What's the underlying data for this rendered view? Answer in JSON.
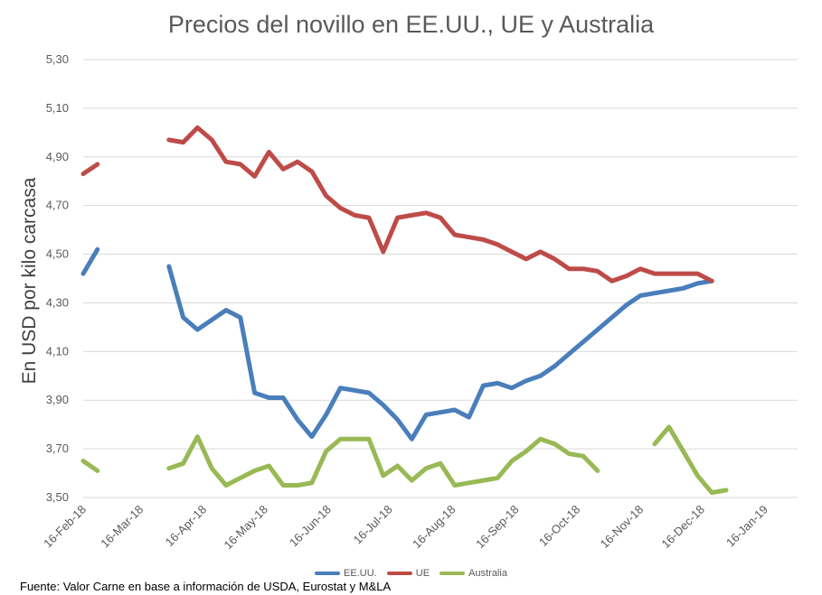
{
  "chart_data": {
    "type": "line",
    "title": "Precios del novillo en EE.UU., UE y Australia",
    "xlabel": "",
    "ylabel": "En USD por kilo carcasa",
    "ylim": [
      3.5,
      5.3
    ],
    "y_ticks": [
      "5,30",
      "5,10",
      "4,90",
      "4,70",
      "4,50",
      "4,30",
      "4,10",
      "3,90",
      "3,70",
      "3,50"
    ],
    "x_ticks": [
      "16-Feb-18",
      "16-Mar-18",
      "16-Apr-18",
      "16-May-18",
      "16-Jun-18",
      "16-Jul-18",
      "16-Aug-18",
      "16-Sep-18",
      "16-Oct-18",
      "16-Nov-18",
      "16-Dec-18",
      "16-Jan-19"
    ],
    "grid": "horizontal",
    "legend_position": "bottom",
    "x_dates": [
      "2018-02-16",
      "2018-02-23",
      "2018-03-02",
      "2018-03-09",
      "2018-03-16",
      "2018-03-23",
      "2018-03-30",
      "2018-04-06",
      "2018-04-13",
      "2018-04-20",
      "2018-04-27",
      "2018-05-04",
      "2018-05-11",
      "2018-05-18",
      "2018-05-25",
      "2018-06-01",
      "2018-06-08",
      "2018-06-15",
      "2018-06-22",
      "2018-06-29",
      "2018-07-06",
      "2018-07-13",
      "2018-07-20",
      "2018-07-27",
      "2018-08-03",
      "2018-08-10",
      "2018-08-17",
      "2018-08-24",
      "2018-08-31",
      "2018-09-07",
      "2018-09-14",
      "2018-09-21",
      "2018-09-28",
      "2018-10-05",
      "2018-10-12",
      "2018-10-19",
      "2018-10-26",
      "2018-11-02",
      "2018-11-09",
      "2018-11-16",
      "2018-11-23",
      "2018-11-30",
      "2018-12-07",
      "2018-12-14",
      "2018-12-21",
      "2018-12-28",
      "2019-01-04",
      "2019-01-11",
      "2019-01-18",
      "2019-01-25",
      "2019-02-01"
    ],
    "series": [
      {
        "name": "EE.UU.",
        "color": "#4A7EBB",
        "values": [
          4.42,
          4.52,
          null,
          4.51,
          null,
          null,
          4.45,
          4.24,
          4.19,
          4.23,
          4.27,
          4.24,
          3.93,
          3.91,
          3.91,
          3.82,
          3.75,
          3.84,
          3.95,
          3.94,
          3.93,
          3.88,
          3.82,
          3.74,
          3.84,
          3.85,
          3.86,
          3.83,
          3.96,
          3.97,
          3.95,
          3.98,
          4.0,
          4.04,
          4.09,
          4.14,
          4.19,
          4.24,
          4.29,
          4.33,
          4.34,
          4.35,
          4.36,
          4.38,
          4.39,
          null,
          null,
          null,
          null,
          null,
          null
        ]
      },
      {
        "name": "UE",
        "color": "#BE4B48",
        "values": [
          4.83,
          4.87,
          null,
          4.9,
          null,
          null,
          4.97,
          4.96,
          5.02,
          4.97,
          4.88,
          4.87,
          4.82,
          4.92,
          4.85,
          4.88,
          4.84,
          4.74,
          4.69,
          4.66,
          4.65,
          4.51,
          4.65,
          4.66,
          4.67,
          4.65,
          4.58,
          4.57,
          4.56,
          4.54,
          4.51,
          4.48,
          4.51,
          4.48,
          4.44,
          4.44,
          4.43,
          4.39,
          4.41,
          4.44,
          4.42,
          4.42,
          4.42,
          4.42,
          4.39,
          null,
          null,
          null,
          null,
          null,
          null
        ]
      },
      {
        "name": "Australia",
        "color": "#98B954",
        "values": [
          3.65,
          3.61,
          null,
          3.62,
          null,
          null,
          3.62,
          3.64,
          3.75,
          3.62,
          3.55,
          3.58,
          3.61,
          3.63,
          3.55,
          3.55,
          3.56,
          3.69,
          3.74,
          3.74,
          3.74,
          3.59,
          3.63,
          3.57,
          3.62,
          3.64,
          3.55,
          3.56,
          3.57,
          3.58,
          3.65,
          3.69,
          3.74,
          3.72,
          3.68,
          3.67,
          3.61,
          null,
          null,
          null,
          3.72,
          3.79,
          3.69,
          3.59,
          3.52,
          3.53,
          null,
          null,
          null,
          null,
          null
        ]
      }
    ]
  },
  "legend": {
    "items": [
      {
        "label": "EE.UU."
      },
      {
        "label": "UE"
      },
      {
        "label": "Australia"
      }
    ]
  },
  "source_note": "Fuente: Valor Carne en base a información de USDA, Eurostat y M&LA"
}
